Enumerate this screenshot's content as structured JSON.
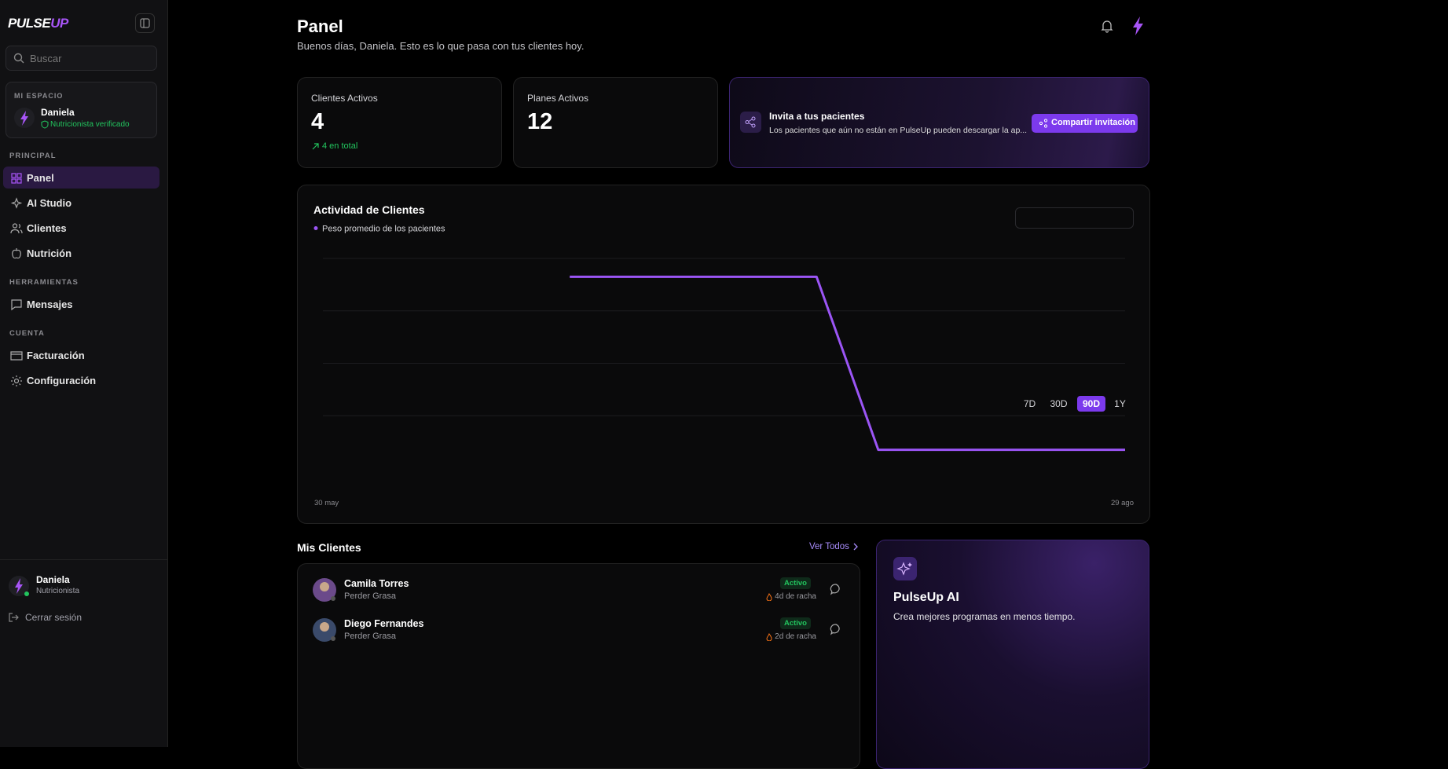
{
  "sidebar": {
    "logo_main": "PULSE",
    "logo_accent": "UP",
    "search_placeholder": "Buscar",
    "workspace": {
      "label": "MI ESPACIO",
      "name": "Daniela",
      "badge": "Nutricionista verificado"
    },
    "sections": [
      {
        "title": "PRINCIPAL",
        "items": [
          "Panel",
          "AI Studio",
          "Clientes",
          "Nutrición"
        ]
      },
      {
        "title": "HERRAMIENTAS",
        "items": [
          "Mensajes"
        ]
      },
      {
        "title": "CUENTA",
        "items": [
          "Facturación",
          "Configuración"
        ]
      }
    ],
    "user": {
      "name": "Daniela",
      "role": "Nutricionista"
    },
    "logout": "Cerrar sesión"
  },
  "header": {
    "title": "Panel",
    "subtitle": "Buenos días, Daniela. Esto es lo que pasa con tus clientes hoy."
  },
  "stats": [
    {
      "label": "Clientes Activos",
      "value": 4,
      "note": "4 en total"
    },
    {
      "label": "Planes Activos",
      "value": 12
    }
  ],
  "invite": {
    "title": "Invita a tus pacientes",
    "text": "Los pacientes que aún no están en PulseUp pueden descargar la ap...",
    "button": "Compartir invitación"
  },
  "activity": {
    "title": "Actividad de Clientes",
    "ranges": [
      "7D",
      "30D",
      "90D",
      "1Y"
    ],
    "active_range": 2,
    "chart": {
      "type": "line",
      "legend": "Peso promedio de los pacientes",
      "x_start": "30 may",
      "x_end": "29 ago",
      "color": "#9b55f5",
      "x": [
        28,
        56,
        63,
        91
      ],
      "xlim": [
        0,
        91
      ],
      "values": [
        3.65,
        3.65,
        0.35,
        0.35
      ],
      "ylim": [
        0,
        4
      ]
    }
  },
  "clients": {
    "title": "Mis Clientes",
    "link": "Ver Todos",
    "rows": [
      {
        "name": "Camila Torres",
        "goal": "Perder Grasa",
        "status": "Activo",
        "streak": "4d de racha"
      },
      {
        "name": "Diego Fernandes",
        "goal": "Perder Grasa",
        "status": "Activo",
        "streak": "2d de racha"
      }
    ]
  },
  "ai_card": {
    "title": "PulseUp AI",
    "text": "Crea mejores programas en menos tiempo."
  }
}
